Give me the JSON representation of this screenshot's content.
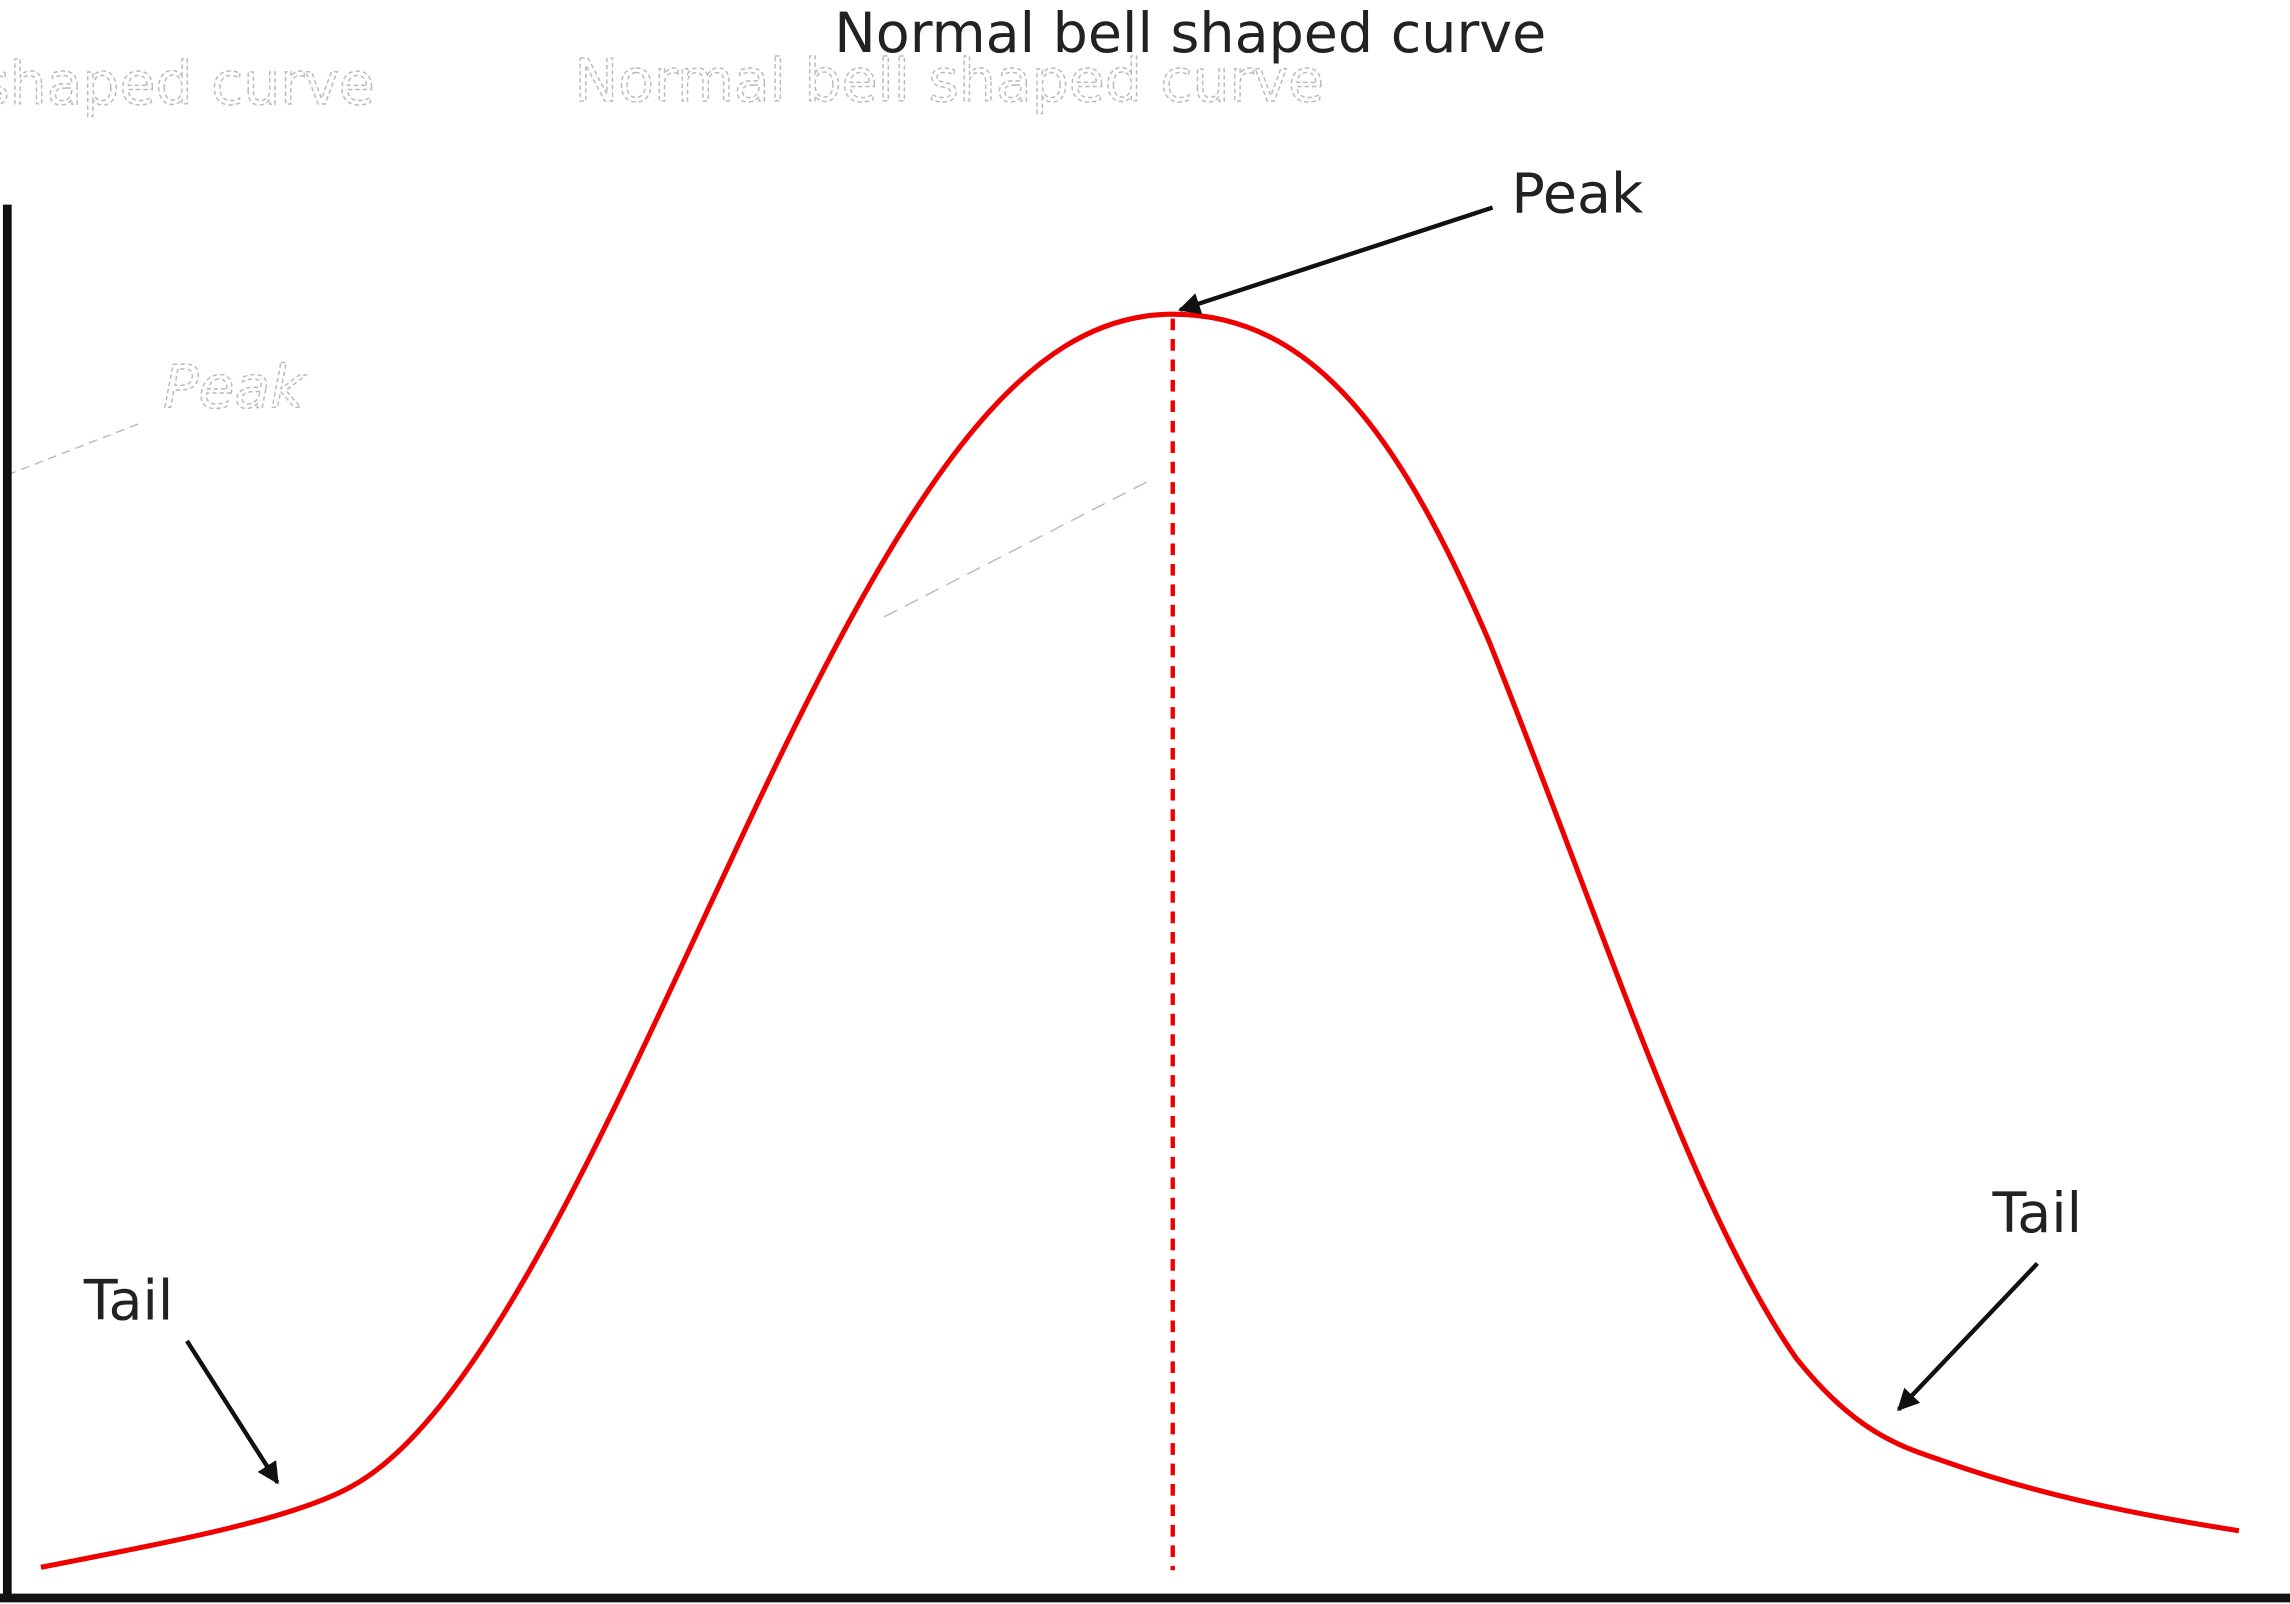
{
  "title": "Normal bell shaped curve",
  "annotations": [
    {
      "label": "Peak"
    },
    {
      "label": "Tail"
    },
    {
      "label": "Tail"
    }
  ]
}
